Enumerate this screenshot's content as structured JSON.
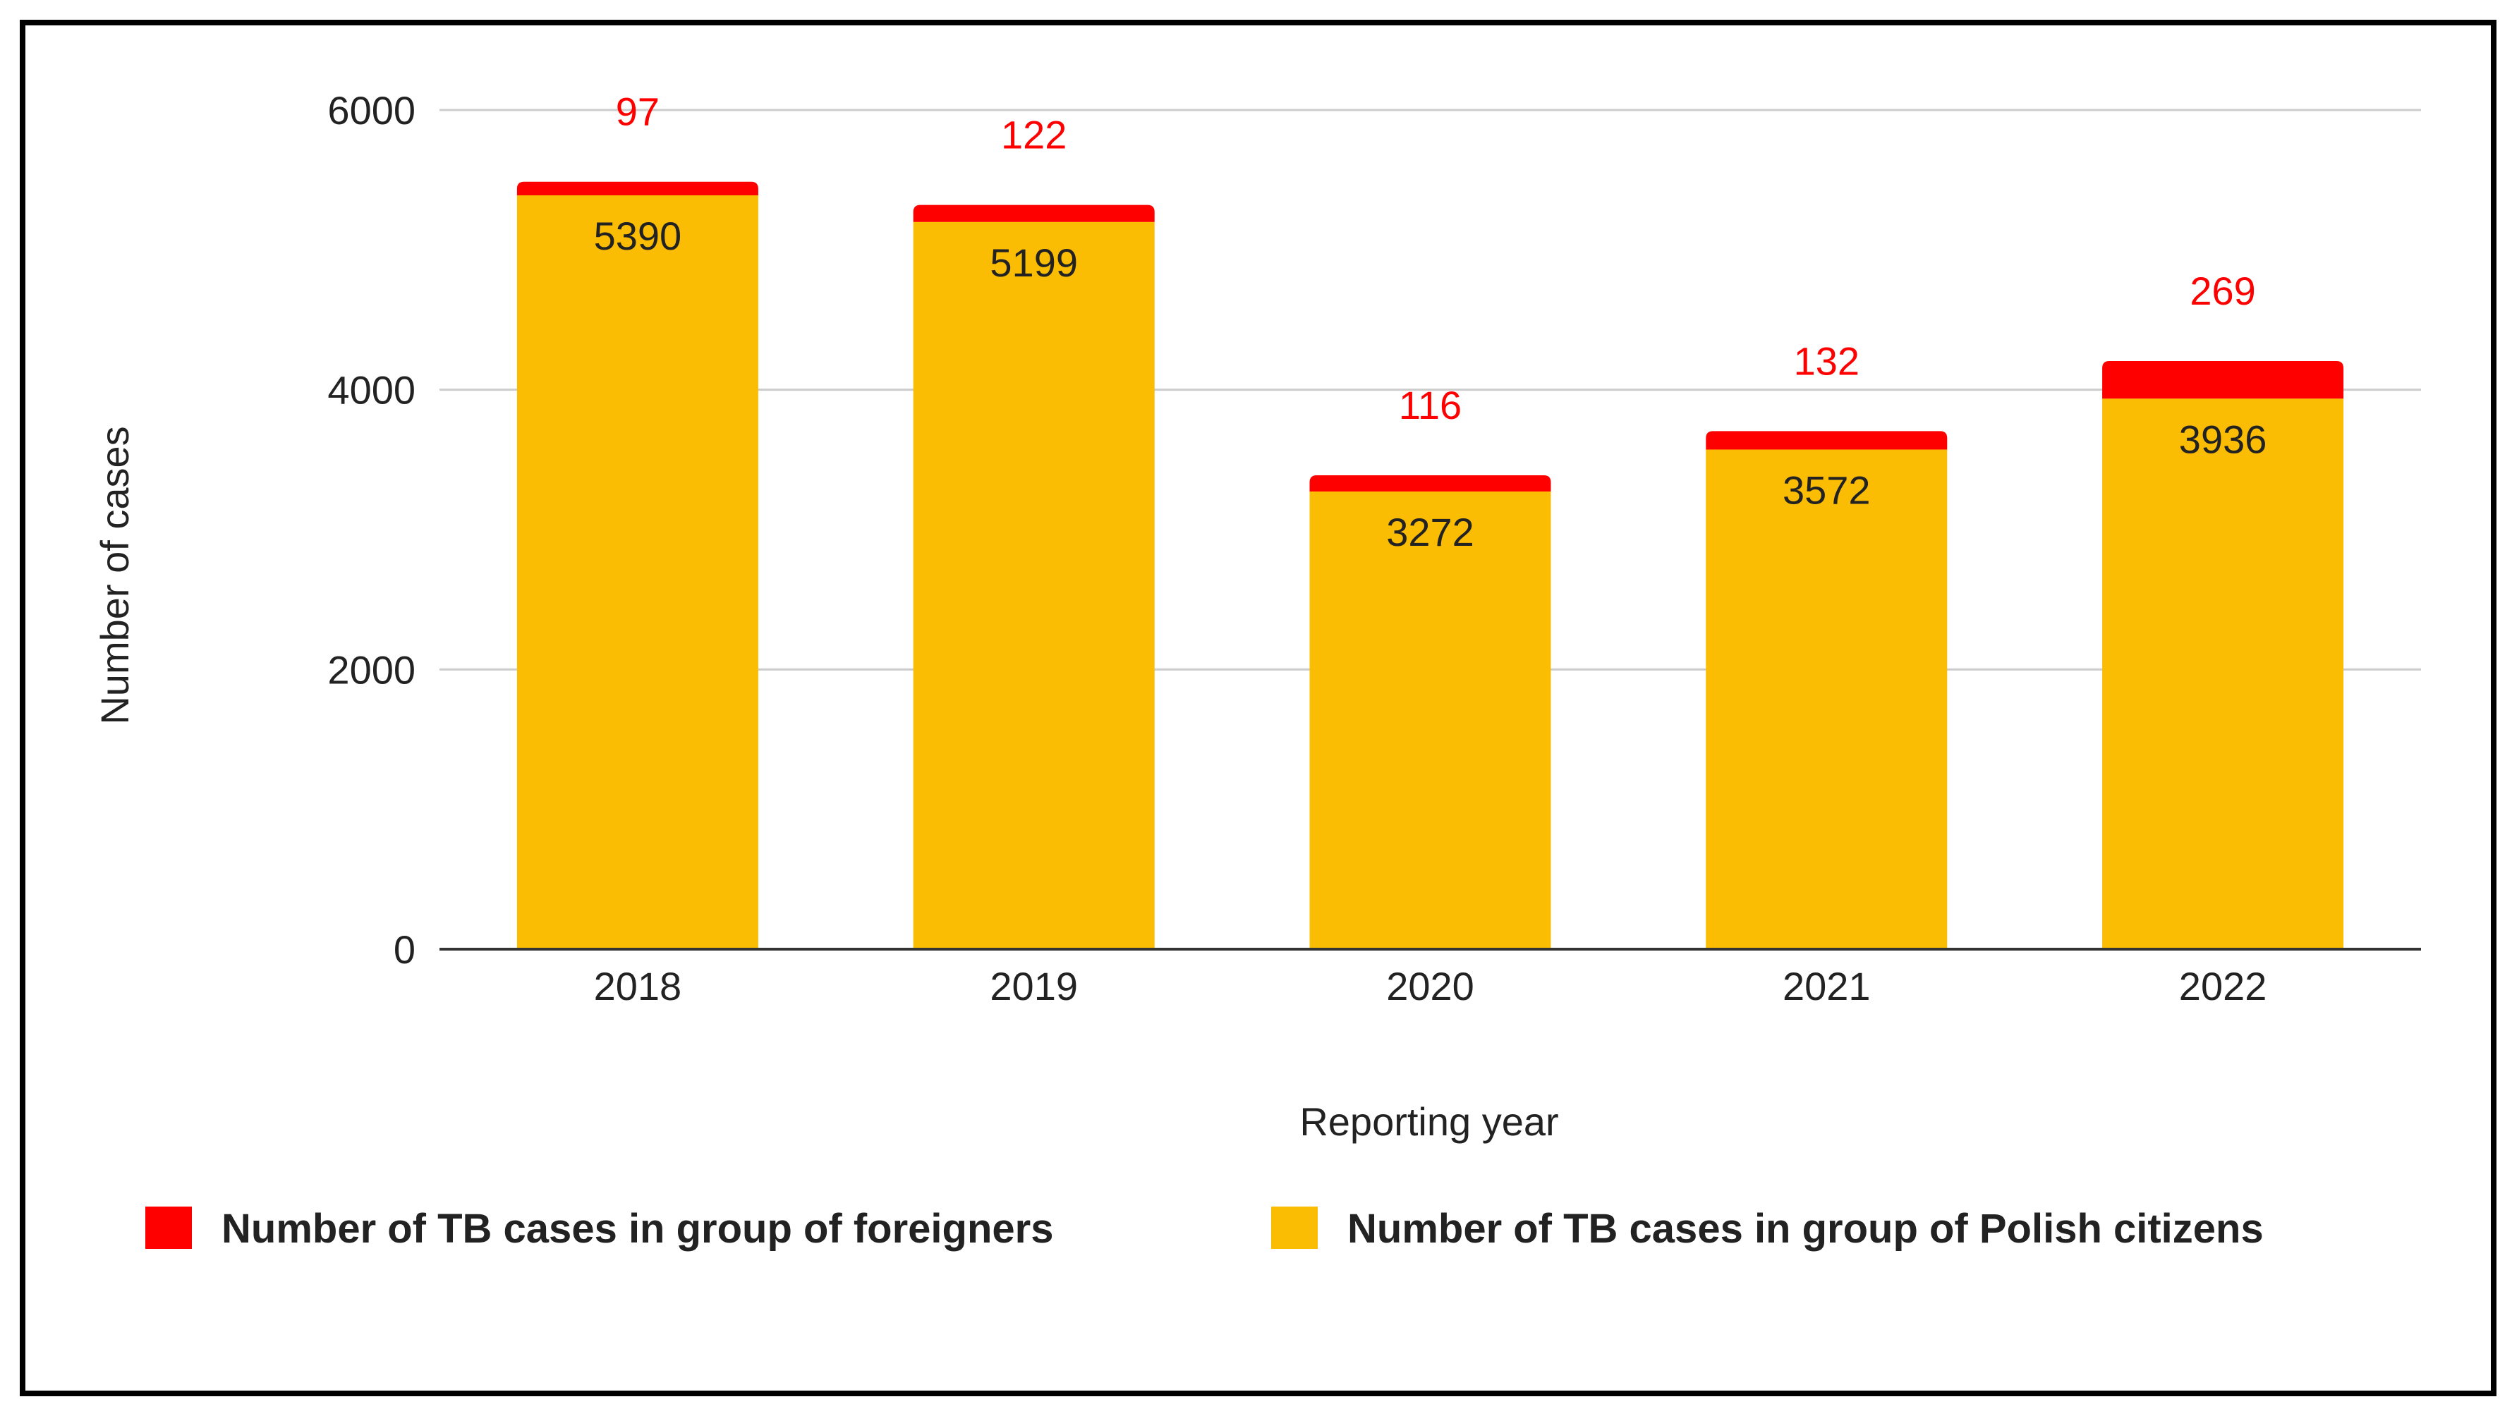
{
  "chart_data": {
    "type": "bar",
    "stacked": true,
    "title": "",
    "xlabel": "Reporting year",
    "ylabel": "Number of cases",
    "ylim": [
      0,
      6000
    ],
    "yticks": [
      0,
      2000,
      4000,
      6000
    ],
    "grid": true,
    "legend_position": "bottom",
    "categories": [
      "2018",
      "2019",
      "2020",
      "2021",
      "2022"
    ],
    "series": [
      {
        "name": "Number of TB cases in group of Polish citizens",
        "color": "#fbbc04",
        "label_color": "#222222",
        "values": [
          5390,
          5199,
          3272,
          3572,
          3936
        ]
      },
      {
        "name": "Number of TB cases in group of foreigners",
        "color": "#ff0000",
        "label_color": "#ff0000",
        "values": [
          97,
          122,
          116,
          132,
          269
        ]
      }
    ],
    "legend_order": [
      1,
      0
    ]
  }
}
